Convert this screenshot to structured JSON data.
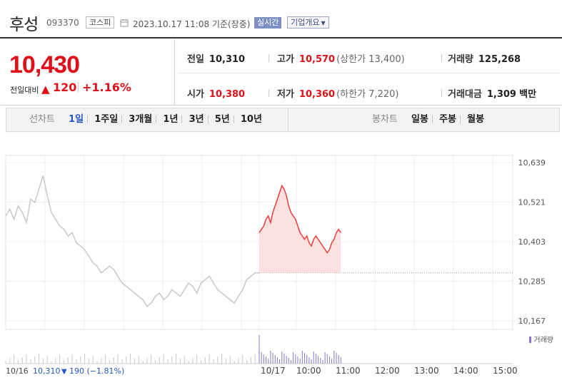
{
  "header": {
    "name": "후성",
    "code": "093370",
    "market": "코스피",
    "timestamp": "2023.10.17 11:08 기준(장중)",
    "live_badge": "실시간",
    "company_info_button": "기업개요",
    "company_info_caret": "▼"
  },
  "quote": {
    "price": "10,430",
    "change_label": "전일대비",
    "change_arrow": "▲",
    "change_value": "120",
    "change_sep": "|",
    "change_pct": "+1.16%",
    "prev_close_label": "전일",
    "prev_close": "10,310",
    "high_label": "고가",
    "high": "10,570",
    "upper_limit": "(상한가 13,400)",
    "volume_label": "거래량",
    "volume": "125,268",
    "open_label": "시가",
    "open": "10,380",
    "low_label": "저가",
    "low": "10,360",
    "lower_limit": "(하한가 7,220)",
    "amount_label": "거래대금",
    "amount": "1,309",
    "amount_unit": "백만",
    "up_color": "#e0101a",
    "down_color": "#2557c8"
  },
  "line_tabs": {
    "title": "선차트",
    "items": [
      "1일",
      "1주일",
      "3개월",
      "1년",
      "3년",
      "5년",
      "10년"
    ],
    "active": "1일"
  },
  "candle_tabs": {
    "title": "봉차트",
    "items": [
      "일봉",
      "주봉",
      "월봉"
    ]
  },
  "chart_data": {
    "type": "line",
    "y_ticks": [
      "10,639",
      "10,521",
      "10,403",
      "10,285",
      "10,167"
    ],
    "ylim": [
      10167,
      10639
    ],
    "reference_price": 10310,
    "x_ticks": [
      "10/17",
      "10:00",
      "11:00",
      "12:00",
      "13:00",
      "14:00",
      "15:00"
    ],
    "prev_day_label": "10/16",
    "prev_day_close": "10,310",
    "prev_day_change_arrow": "▼",
    "prev_day_change": "190 (−1.81%)",
    "volume_legend": "거래량",
    "colors": {
      "prev_day": "#c8c8c8",
      "today": "#f03c3c",
      "today_fill": "#fbdada",
      "volume_prev": "#c8c8c8",
      "volume_today": "#8a76c8"
    },
    "series": [
      {
        "values": [
          10480,
          10500,
          10470,
          10510,
          10490,
          10460,
          10530,
          10520,
          10560,
          10600,
          10540,
          10490,
          10470,
          10450,
          10440,
          10420,
          10430,
          10400,
          10390,
          10380,
          10360,
          10340,
          10330,
          10310,
          10320,
          10330,
          10320,
          10300,
          10280,
          10270,
          10260,
          10250,
          10240,
          10230,
          10210,
          10220,
          10240,
          10250,
          10230,
          10240,
          10260,
          10250,
          10240,
          10260,
          10280,
          10270,
          10250,
          10280,
          10290,
          10300,
          10280,
          10260,
          10250,
          10240,
          10230,
          10220,
          10240,
          10260,
          10290,
          10300,
          10310,
          10310
        ]
      },
      {
        "values": [
          10430,
          10440,
          10450,
          10470,
          10480,
          10460,
          10490,
          10510,
          10530,
          10550,
          10570,
          10560,
          10540,
          10510,
          10490,
          10480,
          10470,
          10450,
          10430,
          10420,
          10410,
          10420,
          10400,
          10390,
          10410,
          10420,
          10410,
          10400,
          10390,
          10380,
          10370,
          10380,
          10400,
          10410,
          10430,
          10440,
          10430
        ]
      }
    ]
  }
}
